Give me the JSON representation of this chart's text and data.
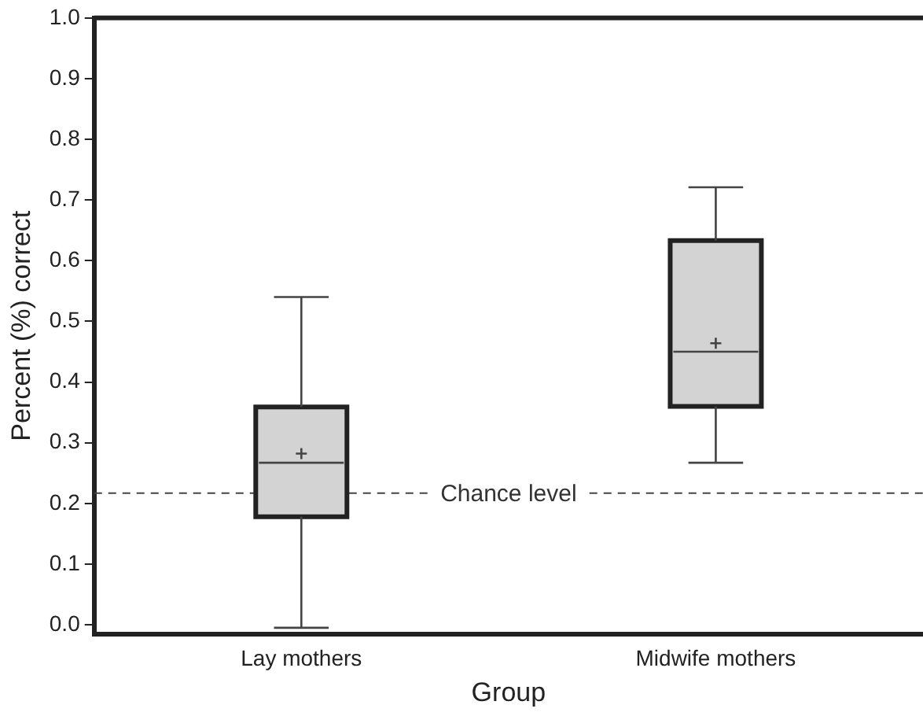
{
  "chart_data": {
    "type": "box",
    "xlabel": "Group",
    "ylabel": "Percent (%) correct",
    "categories": [
      "Lay mothers",
      "Midwife mothers"
    ],
    "series": [
      {
        "color": "#d3d3d3",
        "boxes": [
          {
            "low": -0.005,
            "q1": 0.178,
            "median": 0.267,
            "q3": 0.359,
            "high": 0.54,
            "mean": 0.282
          },
          {
            "low": 0.267,
            "q1": 0.36,
            "median": 0.45,
            "q3": 0.633,
            "high": 0.721,
            "mean": 0.464
          }
        ]
      }
    ],
    "ylim": [
      -0.015,
      1.0
    ],
    "yticks": [
      {
        "value": 0,
        "label": "0.0"
      },
      {
        "value": 0.1,
        "label": "0.1"
      },
      {
        "value": 0.2,
        "label": "0.2"
      },
      {
        "value": 0.3,
        "label": "0.3"
      },
      {
        "value": 0.4,
        "label": "0.4"
      },
      {
        "value": 0.5,
        "label": "0.5"
      },
      {
        "value": 0.6,
        "label": "0.6"
      },
      {
        "value": 0.7,
        "label": "0.7"
      },
      {
        "value": 0.8,
        "label": "0.8"
      },
      {
        "value": 0.9,
        "label": "0.9"
      },
      {
        "value": 1.0,
        "label": "1.0"
      }
    ],
    "ref_lines": [
      {
        "axis": "y",
        "value": 0.217,
        "label": "Chance level",
        "line_style": "dashed"
      }
    ],
    "grid": false,
    "legend": false
  }
}
